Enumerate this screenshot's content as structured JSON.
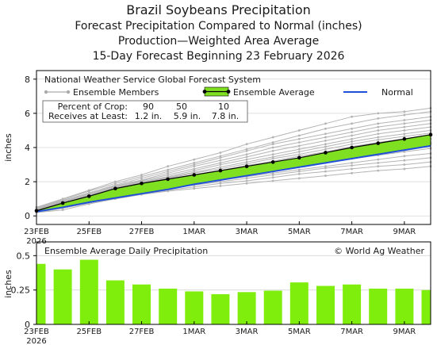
{
  "header": {
    "title": "Brazil Soybeans Precipitation",
    "subtitle1": "Forecast Precipitation Compared to Normal (inches)",
    "subtitle2": "Production—Weighted Area Average",
    "subtitle3": "15-Day Forecast Beginning 23 February 2026"
  },
  "top_panel": {
    "source_label": "National Weather Service Global Forecast System",
    "legend_members": "Ensemble Members",
    "legend_average": "Ensemble Average",
    "legend_normal": "Normal",
    "crop_label_1": "Percent of Crop:",
    "crop_label_2": "Receives at Least:",
    "crop_percents": [
      "90",
      "50",
      "10"
    ],
    "crop_amounts": [
      "1.2 in.",
      "5.9 in.",
      "7.8 in."
    ]
  },
  "bottom_panel": {
    "title": "Ensemble Average Daily Precipitation",
    "credit": "© World Ag Weather"
  },
  "colors": {
    "members": "#b4b4b4",
    "average": "#000000",
    "band": "#7fe022",
    "normal": "#2050d8",
    "bars": "#80ee0d"
  },
  "chart_data": [
    {
      "type": "line",
      "ylabel": "inches",
      "ylim": [
        -0.5,
        8.5
      ],
      "yticks": [
        0,
        2,
        4,
        6,
        8
      ],
      "x_tick_labels": [
        "23FEB\n2026",
        "25FEB",
        "27FEB",
        "1MAR",
        "3MAR",
        "5MAR",
        "7MAR",
        "9MAR"
      ],
      "x": [
        "23FEB",
        "24FEB",
        "25FEB",
        "26FEB",
        "27FEB",
        "28FEB",
        "1MAR",
        "2MAR",
        "3MAR",
        "4MAR",
        "5MAR",
        "6MAR",
        "7MAR",
        "8MAR",
        "9MAR",
        "10MAR"
      ],
      "series": [
        {
          "name": "Ensemble Average",
          "values": [
            0.3,
            0.75,
            1.15,
            1.6,
            1.9,
            2.15,
            2.4,
            2.65,
            2.9,
            3.15,
            3.4,
            3.7,
            4.0,
            4.25,
            4.5,
            4.75
          ]
        },
        {
          "name": "Normal",
          "values": [
            0.25,
            0.5,
            0.8,
            1.05,
            1.3,
            1.55,
            1.85,
            2.1,
            2.35,
            2.6,
            2.85,
            3.1,
            3.35,
            3.6,
            3.85,
            4.1
          ]
        }
      ],
      "band": {
        "lower": [
          0.25,
          0.5,
          0.8,
          1.05,
          1.3,
          1.55,
          1.85,
          2.1,
          2.35,
          2.6,
          2.85,
          3.1,
          3.35,
          3.6,
          3.85,
          4.1
        ],
        "upper": [
          0.3,
          0.75,
          1.15,
          1.6,
          1.9,
          2.15,
          2.4,
          2.65,
          2.9,
          3.15,
          3.4,
          3.7,
          4.0,
          4.25,
          4.5,
          4.75
        ]
      },
      "ensemble_members": [
        [
          0.5,
          1.0,
          1.5,
          2.0,
          2.4,
          2.9,
          3.3,
          3.7,
          4.2,
          4.6,
          5.0,
          5.4,
          5.8,
          6.0,
          6.1,
          6.3
        ],
        [
          0.5,
          0.95,
          1.45,
          1.9,
          2.3,
          2.7,
          3.1,
          3.5,
          3.9,
          4.3,
          4.7,
          5.1,
          5.4,
          5.7,
          5.9,
          6.1
        ],
        [
          0.45,
          0.9,
          1.35,
          1.8,
          2.2,
          2.6,
          3.0,
          3.4,
          3.8,
          4.2,
          4.5,
          4.8,
          5.1,
          5.4,
          5.6,
          5.8
        ],
        [
          0.4,
          0.9,
          1.3,
          1.75,
          2.1,
          2.5,
          2.9,
          3.25,
          3.6,
          4.0,
          4.3,
          4.6,
          4.9,
          5.2,
          5.4,
          5.6
        ],
        [
          0.4,
          0.85,
          1.25,
          1.7,
          2.05,
          2.4,
          2.75,
          3.1,
          3.45,
          3.8,
          4.1,
          4.4,
          4.7,
          5.0,
          5.2,
          5.4
        ],
        [
          0.4,
          0.85,
          1.2,
          1.65,
          2.0,
          2.3,
          2.65,
          3.0,
          3.3,
          3.6,
          3.9,
          4.2,
          4.5,
          4.8,
          5.0,
          5.2
        ],
        [
          0.35,
          0.8,
          1.2,
          1.6,
          1.95,
          2.25,
          2.55,
          2.85,
          3.15,
          3.45,
          3.75,
          4.05,
          4.35,
          4.6,
          4.8,
          5.0
        ],
        [
          0.35,
          0.8,
          1.15,
          1.55,
          1.9,
          2.2,
          2.5,
          2.75,
          3.05,
          3.35,
          3.6,
          3.9,
          4.2,
          4.45,
          4.65,
          4.85
        ],
        [
          0.35,
          0.75,
          1.1,
          1.5,
          1.85,
          2.1,
          2.4,
          2.65,
          2.95,
          3.2,
          3.5,
          3.75,
          4.05,
          4.3,
          4.5,
          4.7
        ],
        [
          0.3,
          0.7,
          1.05,
          1.45,
          1.75,
          2.05,
          2.3,
          2.55,
          2.85,
          3.1,
          3.35,
          3.6,
          3.85,
          4.1,
          4.3,
          4.5
        ],
        [
          0.3,
          0.7,
          1.0,
          1.4,
          1.7,
          1.95,
          2.2,
          2.45,
          2.7,
          2.95,
          3.2,
          3.45,
          3.7,
          3.95,
          4.15,
          4.3
        ],
        [
          0.3,
          0.65,
          0.95,
          1.3,
          1.6,
          1.85,
          2.1,
          2.35,
          2.55,
          2.8,
          3.05,
          3.3,
          3.55,
          3.8,
          4.0,
          4.2
        ],
        [
          0.3,
          0.6,
          0.9,
          1.25,
          1.55,
          1.8,
          2.0,
          2.2,
          2.45,
          2.65,
          2.9,
          3.1,
          3.35,
          3.55,
          3.75,
          3.95
        ],
        [
          0.25,
          0.55,
          0.85,
          1.2,
          1.5,
          1.7,
          1.9,
          2.1,
          2.3,
          2.5,
          2.7,
          2.9,
          3.1,
          3.3,
          3.5,
          3.65
        ],
        [
          0.25,
          0.5,
          0.8,
          1.15,
          1.4,
          1.6,
          1.8,
          2.0,
          2.2,
          2.4,
          2.6,
          2.8,
          2.95,
          3.1,
          3.25,
          3.4
        ],
        [
          0.2,
          0.45,
          0.75,
          1.05,
          1.3,
          1.5,
          1.7,
          1.9,
          2.05,
          2.25,
          2.45,
          2.6,
          2.75,
          2.9,
          3.0,
          3.15
        ],
        [
          0.2,
          0.35,
          0.7,
          1.0,
          1.25,
          1.45,
          1.6,
          1.75,
          1.9,
          2.05,
          2.2,
          2.35,
          2.5,
          2.65,
          2.75,
          2.9
        ]
      ]
    },
    {
      "type": "bar",
      "title": "Ensemble Average Daily Precipitation",
      "ylabel": "inches",
      "ylim": [
        0,
        0.6
      ],
      "yticks": [
        0,
        0.25,
        0.5
      ],
      "ytick_labels": [
        "0",
        "0.25",
        "0.5"
      ],
      "x_tick_labels": [
        "23FEB\n2026",
        "25FEB",
        "27FEB",
        "1MAR",
        "3MAR",
        "5MAR",
        "7MAR",
        "9MAR"
      ],
      "categories": [
        "23FEB",
        "24FEB",
        "25FEB",
        "26FEB",
        "27FEB",
        "28FEB",
        "1MAR",
        "2MAR",
        "3MAR",
        "4MAR",
        "5MAR",
        "6MAR",
        "7MAR",
        "8MAR",
        "9MAR",
        "10MAR"
      ],
      "values": [
        0.44,
        0.4,
        0.47,
        0.32,
        0.29,
        0.26,
        0.24,
        0.22,
        0.235,
        0.245,
        0.305,
        0.28,
        0.29,
        0.26,
        0.26,
        0.25
      ]
    }
  ]
}
